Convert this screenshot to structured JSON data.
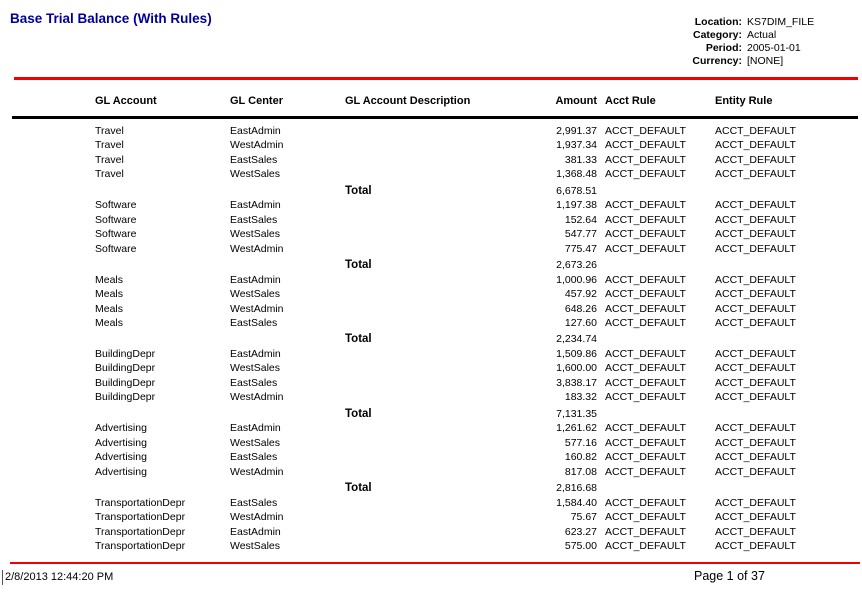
{
  "title": "Base Trial Balance (With Rules)",
  "colors": {
    "title_text": "#000099",
    "rule_lines": "#f00000"
  },
  "info": {
    "rows": [
      {
        "label": "Location:",
        "value": "KS7DIM_FILE"
      },
      {
        "label": "Category:",
        "value": "Actual"
      },
      {
        "label": "Period:",
        "value": "2005-01-01"
      },
      {
        "label": "Currency:",
        "value": "[NONE]"
      }
    ]
  },
  "table": {
    "columns": [
      "GL Account",
      "GL Center",
      "GL Account Description",
      "Amount",
      "Acct Rule",
      "Entity Rule"
    ],
    "total_label": "Total",
    "groups": [
      {
        "account": "Travel",
        "rows": [
          {
            "center": "EastAdmin",
            "description": "",
            "amount": "2,991.37",
            "acct_rule": "ACCT_DEFAULT",
            "entity_rule": "ACCT_DEFAULT"
          },
          {
            "center": "WestAdmin",
            "description": "",
            "amount": "1,937.34",
            "acct_rule": "ACCT_DEFAULT",
            "entity_rule": "ACCT_DEFAULT"
          },
          {
            "center": "EastSales",
            "description": "",
            "amount": "381.33",
            "acct_rule": "ACCT_DEFAULT",
            "entity_rule": "ACCT_DEFAULT"
          },
          {
            "center": "WestSales",
            "description": "",
            "amount": "1,368.48",
            "acct_rule": "ACCT_DEFAULT",
            "entity_rule": "ACCT_DEFAULT"
          }
        ],
        "total": "6,678.51"
      },
      {
        "account": "Software",
        "rows": [
          {
            "center": "EastAdmin",
            "description": "",
            "amount": "1,197.38",
            "acct_rule": "ACCT_DEFAULT",
            "entity_rule": "ACCT_DEFAULT"
          },
          {
            "center": "EastSales",
            "description": "",
            "amount": "152.64",
            "acct_rule": "ACCT_DEFAULT",
            "entity_rule": "ACCT_DEFAULT"
          },
          {
            "center": "WestSales",
            "description": "",
            "amount": "547.77",
            "acct_rule": "ACCT_DEFAULT",
            "entity_rule": "ACCT_DEFAULT"
          },
          {
            "center": "WestAdmin",
            "description": "",
            "amount": "775.47",
            "acct_rule": "ACCT_DEFAULT",
            "entity_rule": "ACCT_DEFAULT"
          }
        ],
        "total": "2,673.26"
      },
      {
        "account": "Meals",
        "rows": [
          {
            "center": "EastAdmin",
            "description": "",
            "amount": "1,000.96",
            "acct_rule": "ACCT_DEFAULT",
            "entity_rule": "ACCT_DEFAULT"
          },
          {
            "center": "WestSales",
            "description": "",
            "amount": "457.92",
            "acct_rule": "ACCT_DEFAULT",
            "entity_rule": "ACCT_DEFAULT"
          },
          {
            "center": "WestAdmin",
            "description": "",
            "amount": "648.26",
            "acct_rule": "ACCT_DEFAULT",
            "entity_rule": "ACCT_DEFAULT"
          },
          {
            "center": "EastSales",
            "description": "",
            "amount": "127.60",
            "acct_rule": "ACCT_DEFAULT",
            "entity_rule": "ACCT_DEFAULT"
          }
        ],
        "total": "2,234.74"
      },
      {
        "account": "BuildingDepr",
        "rows": [
          {
            "center": "EastAdmin",
            "description": "",
            "amount": "1,509.86",
            "acct_rule": "ACCT_DEFAULT",
            "entity_rule": "ACCT_DEFAULT"
          },
          {
            "center": "WestSales",
            "description": "",
            "amount": "1,600.00",
            "acct_rule": "ACCT_DEFAULT",
            "entity_rule": "ACCT_DEFAULT"
          },
          {
            "center": "EastSales",
            "description": "",
            "amount": "3,838.17",
            "acct_rule": "ACCT_DEFAULT",
            "entity_rule": "ACCT_DEFAULT"
          },
          {
            "center": "WestAdmin",
            "description": "",
            "amount": "183.32",
            "acct_rule": "ACCT_DEFAULT",
            "entity_rule": "ACCT_DEFAULT"
          }
        ],
        "total": "7,131.35"
      },
      {
        "account": "Advertising",
        "rows": [
          {
            "center": "EastAdmin",
            "description": "",
            "amount": "1,261.62",
            "acct_rule": "ACCT_DEFAULT",
            "entity_rule": "ACCT_DEFAULT"
          },
          {
            "center": "WestSales",
            "description": "",
            "amount": "577.16",
            "acct_rule": "ACCT_DEFAULT",
            "entity_rule": "ACCT_DEFAULT"
          },
          {
            "center": "EastSales",
            "description": "",
            "amount": "160.82",
            "acct_rule": "ACCT_DEFAULT",
            "entity_rule": "ACCT_DEFAULT"
          },
          {
            "center": "WestAdmin",
            "description": "",
            "amount": "817.08",
            "acct_rule": "ACCT_DEFAULT",
            "entity_rule": "ACCT_DEFAULT"
          }
        ],
        "total": "2,816.68"
      },
      {
        "account": "TransportationDepr",
        "rows": [
          {
            "center": "EastSales",
            "description": "",
            "amount": "1,584.40",
            "acct_rule": "ACCT_DEFAULT",
            "entity_rule": "ACCT_DEFAULT"
          },
          {
            "center": "WestAdmin",
            "description": "",
            "amount": "75.67",
            "acct_rule": "ACCT_DEFAULT",
            "entity_rule": "ACCT_DEFAULT"
          },
          {
            "center": "EastAdmin",
            "description": "",
            "amount": "623.27",
            "acct_rule": "ACCT_DEFAULT",
            "entity_rule": "ACCT_DEFAULT"
          },
          {
            "center": "WestSales",
            "description": "",
            "amount": "575.00",
            "acct_rule": "ACCT_DEFAULT",
            "entity_rule": "ACCT_DEFAULT"
          }
        ],
        "total": null
      }
    ]
  },
  "footer": {
    "timestamp": "2/8/2013 12:44:20 PM",
    "page": "Page 1 of 37"
  }
}
